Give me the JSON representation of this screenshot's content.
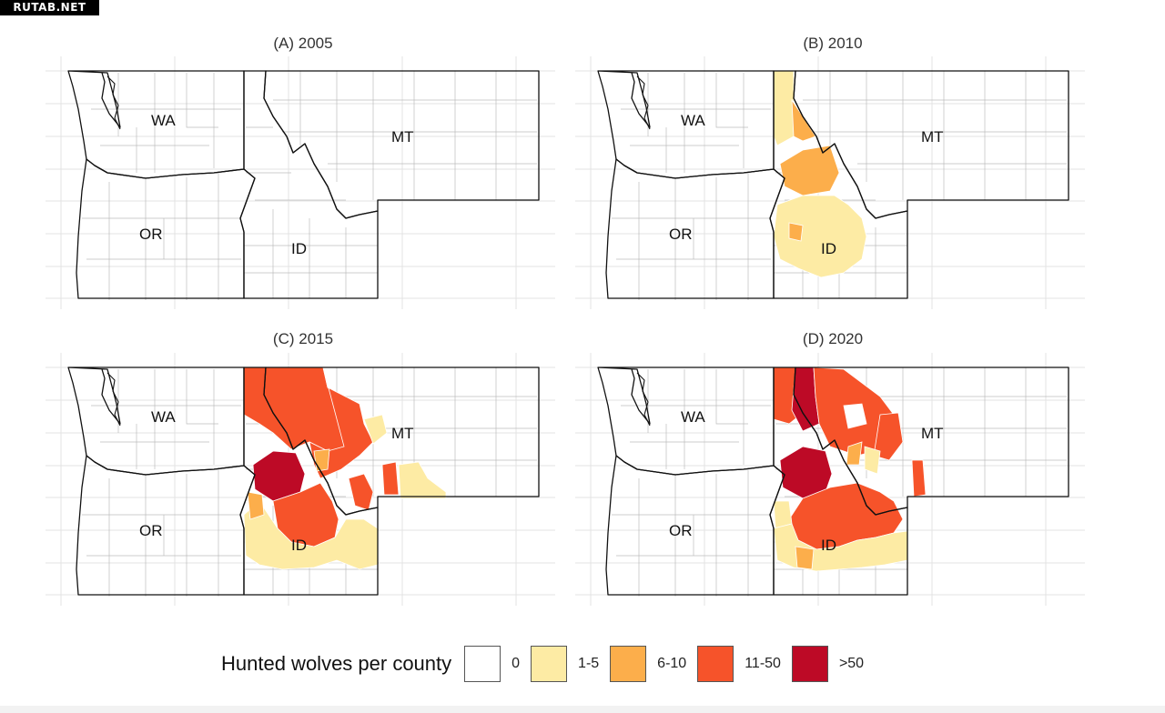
{
  "watermark": "RUTAB.NET",
  "panels": [
    {
      "title": "(A) 2005",
      "states": [
        "WA",
        "OR",
        "MT",
        "ID"
      ]
    },
    {
      "title": "(B) 2010",
      "states": [
        "WA",
        "OR",
        "MT",
        "ID"
      ]
    },
    {
      "title": "(C) 2015",
      "states": [
        "WA",
        "OR",
        "MT",
        "ID"
      ]
    },
    {
      "title": "(D) 2020",
      "states": [
        "WA",
        "OR",
        "MT",
        "ID"
      ]
    }
  ],
  "legend": {
    "title": "Hunted wolves per county",
    "items": [
      {
        "label": "0",
        "color": "#ffffff"
      },
      {
        "label": "1-5",
        "color": "#fdeba4"
      },
      {
        "label": "6-10",
        "color": "#fcae4b"
      },
      {
        "label": "11-50",
        "color": "#f6532a"
      },
      {
        "label": ">50",
        "color": "#bd0a26"
      }
    ]
  }
}
